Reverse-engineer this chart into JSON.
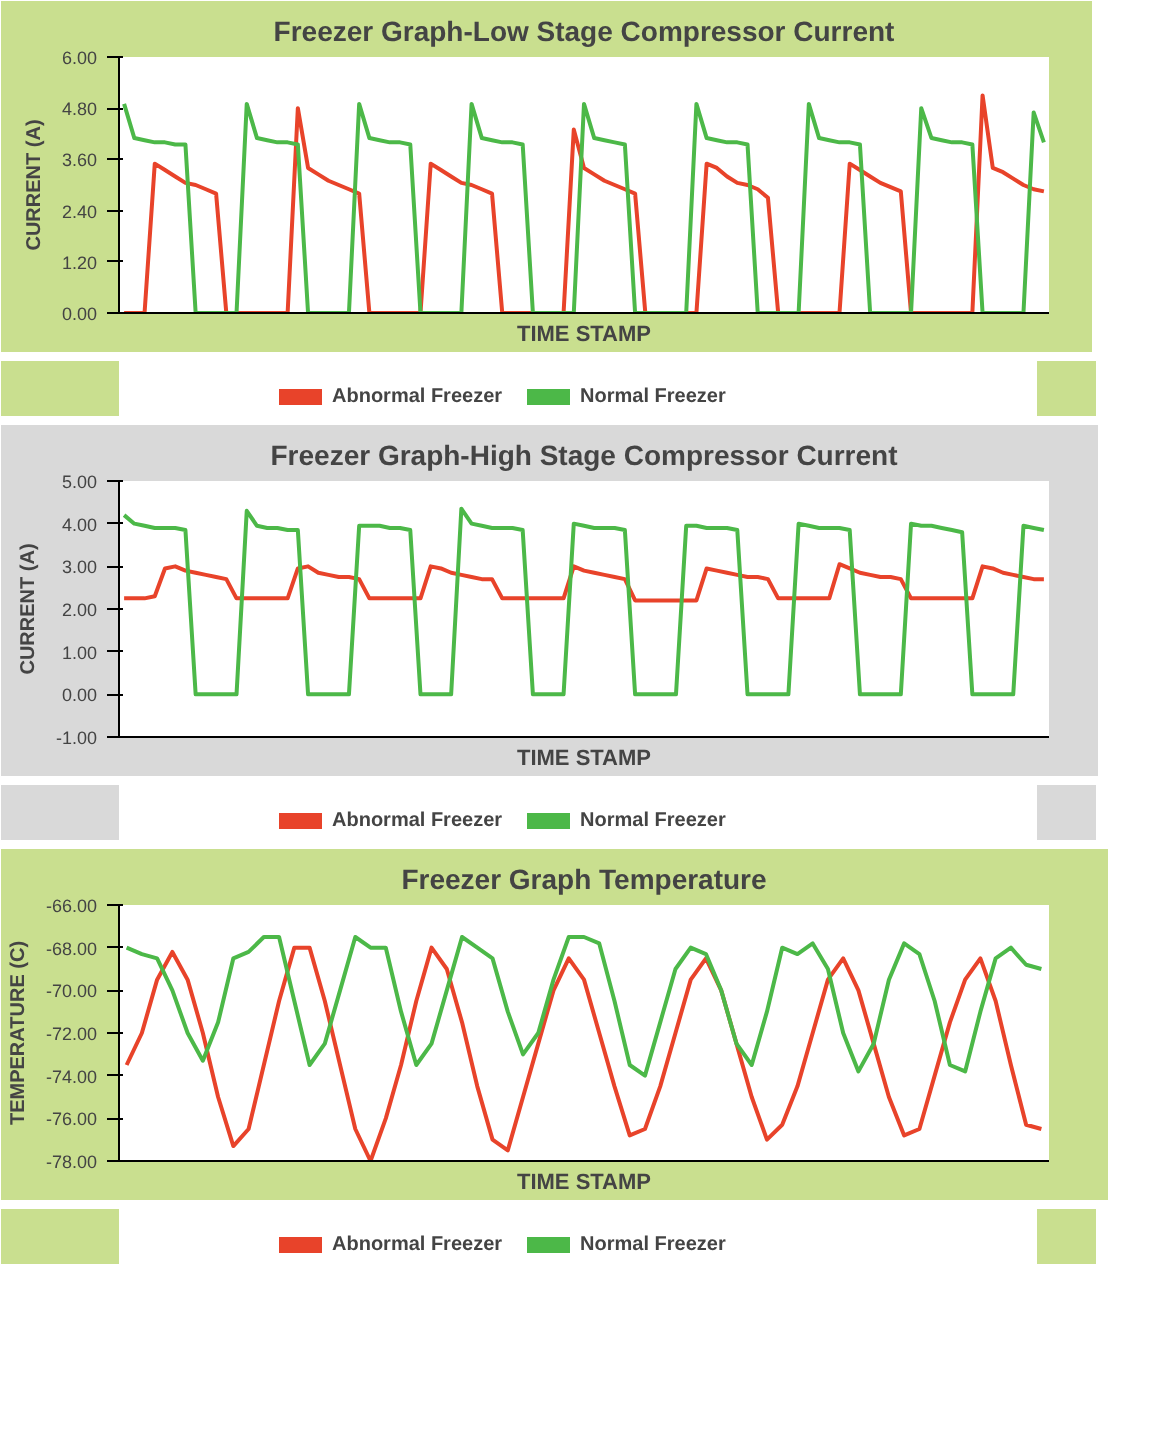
{
  "chart_data": [
    {
      "type": "line",
      "title": "Freezer Graph-Low Stage Compressor Current",
      "xlabel": "TIME STAMP",
      "ylabel": "CURRENT (A)",
      "legend": "bottom",
      "tick_labels": "y",
      "categories": [
        null,
        null,
        null,
        null,
        null,
        null,
        null,
        null,
        null,
        null,
        null,
        null,
        null,
        null,
        null,
        null,
        null,
        null,
        null,
        null,
        null,
        null,
        null,
        null,
        null,
        null,
        null,
        null,
        null,
        null,
        null,
        null,
        null,
        null,
        null,
        null,
        null,
        null,
        null,
        null,
        null,
        null,
        null,
        null,
        null,
        null,
        null,
        null,
        null,
        null,
        null,
        null,
        null,
        null,
        null,
        null,
        null,
        null,
        null,
        null,
        null,
        null,
        null,
        null,
        null,
        null,
        null,
        null,
        null,
        null,
        null,
        null,
        null,
        null,
        null,
        null,
        null,
        null,
        null,
        null,
        null,
        null,
        null,
        null,
        null,
        null,
        null,
        null,
        null,
        null,
        null
      ],
      "ylim": [
        0,
        6
      ],
      "yticks": [
        {
          "value": 0,
          "label": "0.00"
        },
        {
          "value": 1.2,
          "label": "1.20"
        },
        {
          "value": 2.4,
          "label": "2.40"
        },
        {
          "value": 3.6,
          "label": "3.60"
        },
        {
          "value": 4.8,
          "label": "4.80"
        },
        {
          "value": 6,
          "label": "6.00"
        }
      ],
      "series": [
        {
          "name": "Abnormal Freezer",
          "color": "#e8432a",
          "values": [
            0,
            0,
            0,
            3.5,
            3.35,
            3.2,
            3.05,
            3.0,
            2.9,
            2.8,
            0,
            0,
            0,
            0,
            0,
            0,
            0,
            4.8,
            3.4,
            3.25,
            3.1,
            3.0,
            2.9,
            2.8,
            0,
            0,
            0,
            0,
            0,
            0,
            3.5,
            3.35,
            3.2,
            3.05,
            3.0,
            2.9,
            2.8,
            0,
            0,
            0,
            0,
            0,
            0,
            0,
            4.3,
            3.4,
            3.25,
            3.1,
            3.0,
            2.9,
            2.8,
            0,
            0,
            0,
            0,
            0,
            0,
            3.5,
            3.4,
            3.2,
            3.05,
            3.0,
            2.9,
            2.7,
            0,
            0,
            0,
            0,
            0,
            0,
            0,
            3.5,
            3.35,
            3.2,
            3.05,
            2.95,
            2.85,
            0,
            0,
            0,
            0,
            0,
            0,
            0,
            5.1,
            3.4,
            3.3,
            3.15,
            3.0,
            2.9,
            2.85
          ]
        },
        {
          "name": "Normal Freezer",
          "color": "#4cb848",
          "values": [
            4.9,
            4.1,
            4.05,
            4.0,
            4.0,
            3.95,
            3.95,
            0,
            0,
            0,
            0,
            0,
            4.9,
            4.1,
            4.05,
            4.0,
            4.0,
            3.95,
            0,
            0,
            0,
            0,
            0,
            4.9,
            4.1,
            4.05,
            4.0,
            4.0,
            3.95,
            0,
            0,
            0,
            0,
            0,
            4.9,
            4.1,
            4.05,
            4.0,
            4.0,
            3.95,
            0,
            0,
            0,
            0,
            0,
            4.9,
            4.1,
            4.05,
            4.0,
            3.95,
            0,
            0,
            0,
            0,
            0,
            0,
            4.9,
            4.1,
            4.05,
            4.0,
            4.0,
            3.95,
            0,
            0,
            0,
            0,
            0,
            4.9,
            4.1,
            4.05,
            4.0,
            4.0,
            3.95,
            0,
            0,
            0,
            0,
            0,
            4.8,
            4.1,
            4.05,
            4.0,
            4.0,
            3.95,
            0,
            0,
            0,
            0,
            0,
            4.7,
            4.0
          ]
        }
      ]
    },
    {
      "type": "line",
      "title": "Freezer Graph-High Stage Compressor Current",
      "xlabel": "TIME STAMP",
      "ylabel": "CURRENT (A)",
      "legend": "bottom",
      "tick_labels": "y",
      "categories": [
        null,
        null,
        null,
        null,
        null,
        null,
        null,
        null,
        null,
        null,
        null,
        null,
        null,
        null,
        null,
        null,
        null,
        null,
        null,
        null,
        null,
        null,
        null,
        null,
        null,
        null,
        null,
        null,
        null,
        null,
        null,
        null,
        null,
        null,
        null,
        null,
        null,
        null,
        null,
        null,
        null,
        null,
        null,
        null,
        null,
        null,
        null,
        null,
        null,
        null,
        null,
        null,
        null,
        null,
        null,
        null,
        null,
        null,
        null,
        null,
        null,
        null,
        null,
        null,
        null,
        null,
        null,
        null,
        null,
        null,
        null,
        null,
        null,
        null,
        null,
        null,
        null,
        null,
        null,
        null,
        null,
        null,
        null,
        null,
        null,
        null,
        null,
        null,
        null,
        null,
        null
      ],
      "ylim": [
        -1,
        5
      ],
      "yticks": [
        {
          "value": -1,
          "label": "-1.00"
        },
        {
          "value": 0,
          "label": "0.00"
        },
        {
          "value": 1,
          "label": "1.00"
        },
        {
          "value": 2,
          "label": "2.00"
        },
        {
          "value": 3,
          "label": "3.00"
        },
        {
          "value": 4,
          "label": "4.00"
        },
        {
          "value": 5,
          "label": "5.00"
        }
      ],
      "series": [
        {
          "name": "Abnormal Freezer",
          "color": "#e8432a",
          "values": [
            2.25,
            2.25,
            2.25,
            2.3,
            2.95,
            3.0,
            2.9,
            2.85,
            2.8,
            2.75,
            2.7,
            2.25,
            2.25,
            2.25,
            2.25,
            2.25,
            2.25,
            2.95,
            3.0,
            2.85,
            2.8,
            2.75,
            2.75,
            2.7,
            2.25,
            2.25,
            2.25,
            2.25,
            2.25,
            2.25,
            3.0,
            2.95,
            2.85,
            2.8,
            2.75,
            2.7,
            2.7,
            2.25,
            2.25,
            2.25,
            2.25,
            2.25,
            2.25,
            2.25,
            3.0,
            2.9,
            2.85,
            2.8,
            2.75,
            2.7,
            2.2,
            2.2,
            2.2,
            2.2,
            2.2,
            2.2,
            2.2,
            2.95,
            2.9,
            2.85,
            2.8,
            2.75,
            2.75,
            2.7,
            2.25,
            2.25,
            2.25,
            2.25,
            2.25,
            2.25,
            3.05,
            2.95,
            2.85,
            2.8,
            2.75,
            2.75,
            2.7,
            2.25,
            2.25,
            2.25,
            2.25,
            2.25,
            2.25,
            2.25,
            3.0,
            2.95,
            2.85,
            2.8,
            2.75,
            2.7,
            2.7
          ]
        },
        {
          "name": "Normal Freezer",
          "color": "#4cb848",
          "values": [
            4.2,
            4.0,
            3.95,
            3.9,
            3.9,
            3.9,
            3.85,
            0,
            0,
            0,
            0,
            0,
            4.3,
            3.95,
            3.9,
            3.9,
            3.85,
            3.85,
            0,
            0,
            0,
            0,
            0,
            3.95,
            3.95,
            3.95,
            3.9,
            3.9,
            3.85,
            0,
            0,
            0,
            0,
            4.35,
            4.0,
            3.95,
            3.9,
            3.9,
            3.9,
            3.85,
            0,
            0,
            0,
            0,
            4.0,
            3.95,
            3.9,
            3.9,
            3.9,
            3.85,
            0,
            0,
            0,
            0,
            0,
            3.95,
            3.95,
            3.9,
            3.9,
            3.9,
            3.85,
            0,
            0,
            0,
            0,
            0,
            4.0,
            3.95,
            3.9,
            3.9,
            3.9,
            3.85,
            0,
            0,
            0,
            0,
            0,
            4.0,
            3.95,
            3.95,
            3.9,
            3.85,
            3.8,
            0,
            0,
            0,
            0,
            0,
            3.95,
            3.9,
            3.85
          ]
        }
      ]
    },
    {
      "type": "line",
      "title": "Freezer Graph Temperature",
      "xlabel": "TIME STAMP",
      "ylabel": "TEMPERATURE (C)",
      "legend": "bottom",
      "tick_labels": "y",
      "categories": [
        null,
        null,
        null,
        null,
        null,
        null,
        null,
        null,
        null,
        null,
        null,
        null,
        null,
        null,
        null,
        null,
        null,
        null,
        null,
        null,
        null,
        null,
        null,
        null,
        null,
        null,
        null,
        null,
        null,
        null,
        null,
        null,
        null,
        null,
        null,
        null,
        null,
        null,
        null,
        null,
        null,
        null,
        null,
        null,
        null,
        null,
        null,
        null,
        null,
        null,
        null,
        null,
        null,
        null,
        null,
        null,
        null,
        null,
        null,
        null,
        null
      ],
      "ylim": [
        -78,
        -66
      ],
      "yticks": [
        {
          "value": -78,
          "label": "-78.00"
        },
        {
          "value": -76,
          "label": "-76.00"
        },
        {
          "value": -74,
          "label": "-74.00"
        },
        {
          "value": -72,
          "label": "-72.00"
        },
        {
          "value": -70,
          "label": "-70.00"
        },
        {
          "value": -68,
          "label": "-68.00"
        },
        {
          "value": -66,
          "label": "-66.00"
        }
      ],
      "series": [
        {
          "name": "Abnormal Freezer",
          "color": "#e8432a",
          "values": [
            -73.5,
            -72,
            -69.5,
            -68.2,
            -69.5,
            -72,
            -75,
            -77.3,
            -76.5,
            -73.5,
            -70.5,
            -68,
            -68,
            -70.5,
            -73.5,
            -76.5,
            -78,
            -76,
            -73.5,
            -70.5,
            -68,
            -69,
            -71.5,
            -74.5,
            -77,
            -77.5,
            -75,
            -72.5,
            -70,
            -68.5,
            -69.5,
            -72,
            -74.5,
            -76.8,
            -76.5,
            -74.5,
            -72,
            -69.5,
            -68.5,
            -70,
            -72.5,
            -75,
            -77,
            -76.3,
            -74.5,
            -72,
            -69.5,
            -68.5,
            -70,
            -72.5,
            -75,
            -76.8,
            -76.5,
            -74,
            -71.5,
            -69.5,
            -68.5,
            -70.5,
            -73.5,
            -76.3,
            -76.5
          ]
        },
        {
          "name": "Normal Freezer",
          "color": "#4cb848",
          "values": [
            -68,
            -68.3,
            -68.5,
            -70,
            -72,
            -73.3,
            -71.5,
            -68.5,
            -68.2,
            -67.5,
            -67.5,
            -70.5,
            -73.5,
            -72.5,
            -70,
            -67.5,
            -68,
            -68,
            -71,
            -73.5,
            -72.5,
            -70,
            -67.5,
            -68,
            -68.5,
            -71,
            -73,
            -72,
            -69.5,
            -67.5,
            -67.5,
            -67.8,
            -70.5,
            -73.5,
            -74,
            -71.5,
            -69,
            -68,
            -68.3,
            -70,
            -72.5,
            -73.5,
            -71,
            -68,
            -68.3,
            -67.8,
            -69,
            -72,
            -73.8,
            -72.5,
            -69.5,
            -67.8,
            -68.3,
            -70.5,
            -73.5,
            -73.8,
            -71,
            -68.5,
            -68,
            -68.8,
            -69
          ]
        }
      ]
    }
  ]
}
